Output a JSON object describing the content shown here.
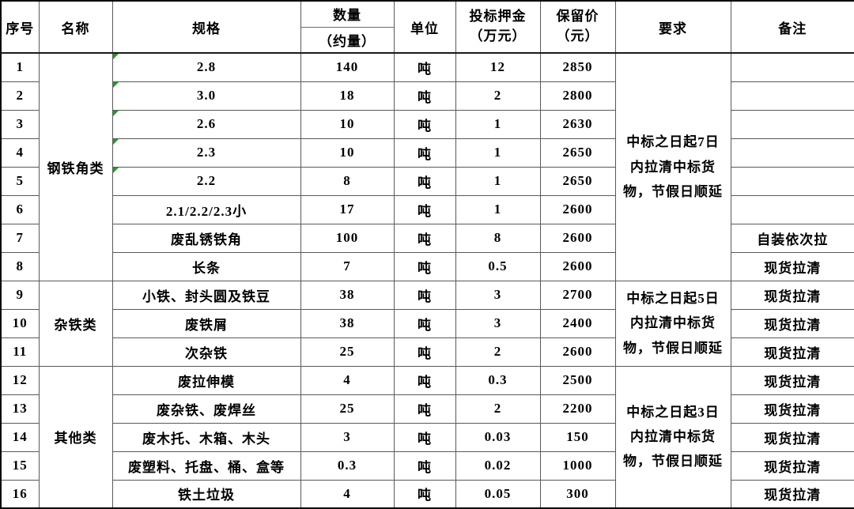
{
  "table": {
    "headers": {
      "serial": "序号",
      "name": "名称",
      "spec": "规格",
      "qty_top": "数量",
      "qty_bottom": "（约量）",
      "unit": "单位",
      "deposit": "投标押金\n（万元）",
      "reserve": "保留价\n（元）",
      "requirement": "要求",
      "remark": "备注"
    },
    "colors": {
      "grid_line": "#595959",
      "outer_border": "#000000",
      "text": "#000000",
      "flag_green": "#1f9e1f",
      "background": "#ffffff"
    },
    "groups": [
      {
        "category": "钢铁角类",
        "requirement": "中标之日起7日\n内拉清中标货\n物，节假日顺延",
        "rows": [
          {
            "no": "1",
            "spec": "2.8",
            "qty": "140",
            "unit": "吨",
            "deposit": "12",
            "reserve": "2850",
            "remark": "",
            "flag": true
          },
          {
            "no": "2",
            "spec": "3.0",
            "qty": "18",
            "unit": "吨",
            "deposit": "2",
            "reserve": "2800",
            "remark": "",
            "flag": true
          },
          {
            "no": "3",
            "spec": "2.6",
            "qty": "10",
            "unit": "吨",
            "deposit": "1",
            "reserve": "2630",
            "remark": "",
            "flag": true
          },
          {
            "no": "4",
            "spec": "2.3",
            "qty": "10",
            "unit": "吨",
            "deposit": "1",
            "reserve": "2650",
            "remark": "",
            "flag": true
          },
          {
            "no": "5",
            "spec": "2.2",
            "qty": "8",
            "unit": "吨",
            "deposit": "1",
            "reserve": "2650",
            "remark": "",
            "flag": true
          },
          {
            "no": "6",
            "spec": "2.1/2.2/2.3小",
            "qty": "17",
            "unit": "吨",
            "deposit": "1",
            "reserve": "2600",
            "remark": "",
            "flag": false
          },
          {
            "no": "7",
            "spec": "废乱锈铁角",
            "qty": "100",
            "unit": "吨",
            "deposit": "8",
            "reserve": "2600",
            "remark": "自装依次拉",
            "flag": false
          },
          {
            "no": "8",
            "spec": "长条",
            "qty": "7",
            "unit": "吨",
            "deposit": "0.5",
            "reserve": "2600",
            "remark": "现货拉清",
            "flag": false
          }
        ]
      },
      {
        "category": "杂铁类",
        "requirement": "中标之日起5日\n内拉清中标货\n物，节假日顺延",
        "rows": [
          {
            "no": "9",
            "spec": "小铁、封头圆及铁豆",
            "qty": "38",
            "unit": "吨",
            "deposit": "3",
            "reserve": "2700",
            "remark": "现货拉清",
            "flag": false
          },
          {
            "no": "10",
            "spec": "废铁屑",
            "qty": "38",
            "unit": "吨",
            "deposit": "3",
            "reserve": "2400",
            "remark": "现货拉清",
            "flag": false
          },
          {
            "no": "11",
            "spec": "次杂铁",
            "qty": "25",
            "unit": "吨",
            "deposit": "2",
            "reserve": "2600",
            "remark": "现货拉清",
            "flag": false
          }
        ]
      },
      {
        "category": "其他类",
        "requirement": "中标之日起3日\n内拉清中标货\n物，节假日顺延",
        "rows": [
          {
            "no": "12",
            "spec": "废拉伸模",
            "qty": "4",
            "unit": "吨",
            "deposit": "0.3",
            "reserve": "2500",
            "remark": "现货拉清",
            "flag": false
          },
          {
            "no": "13",
            "spec": "废杂铁、废焊丝",
            "qty": "25",
            "unit": "吨",
            "deposit": "2",
            "reserve": "2200",
            "remark": "现货拉清",
            "flag": false
          },
          {
            "no": "14",
            "spec": "废木托、木箱、木头",
            "qty": "3",
            "unit": "吨",
            "deposit": "0.03",
            "reserve": "150",
            "remark": "现货拉清",
            "flag": false
          },
          {
            "no": "15",
            "spec": "废塑料、托盘、桶、盒等",
            "qty": "0.3",
            "unit": "吨",
            "deposit": "0.02",
            "reserve": "1000",
            "remark": "现货拉清",
            "flag": false
          },
          {
            "no": "16",
            "spec": "铁土垃圾",
            "qty": "4",
            "unit": "吨",
            "deposit": "0.05",
            "reserve": "300",
            "remark": "现货拉清",
            "flag": false
          }
        ]
      }
    ]
  }
}
